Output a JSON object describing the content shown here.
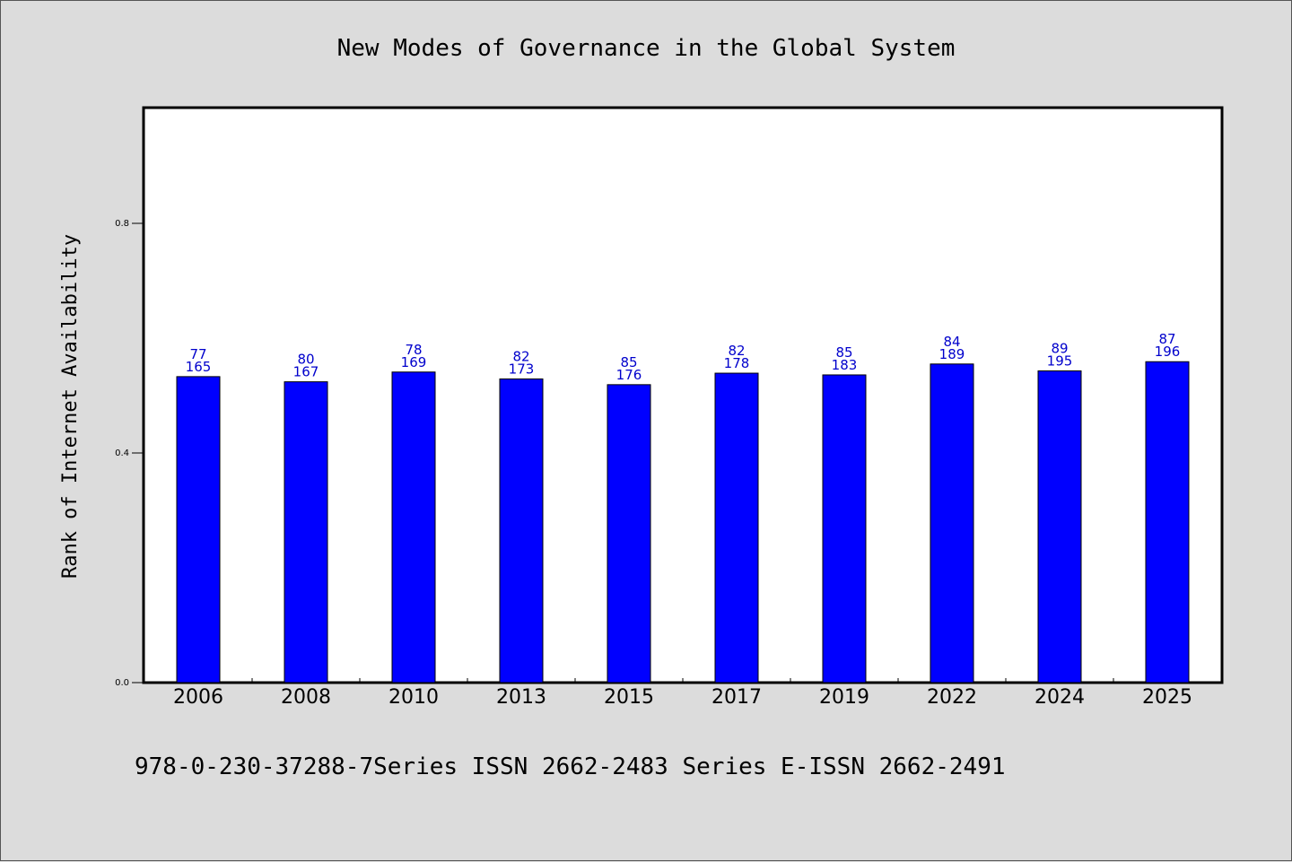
{
  "chart_data": {
    "type": "bar",
    "title": "New Modes of Governance in the Global System",
    "ylabel": "Rank of Internet Availability",
    "xlabel": "",
    "categories": [
      "2006",
      "2008",
      "2010",
      "2013",
      "2015",
      "2017",
      "2019",
      "2022",
      "2024",
      "2025"
    ],
    "values": [
      0.533,
      0.524,
      0.541,
      0.529,
      0.519,
      0.539,
      0.536,
      0.555,
      0.543,
      0.559
    ],
    "labels_top": [
      "77",
      "80",
      "78",
      "82",
      "85",
      "82",
      "85",
      "84",
      "89",
      "87"
    ],
    "labels_bottom": [
      "165",
      "167",
      "169",
      "173",
      "176",
      "178",
      "183",
      "189",
      "195",
      "196"
    ],
    "ylim": [
      0,
      1.0
    ],
    "yticks": [
      0.0,
      0.4,
      0.8
    ],
    "ytick_labels": [
      "0.0",
      "0.4",
      "0.8"
    ],
    "grid": false,
    "bar_color": "#0000ff",
    "label_color": "#0000cc"
  },
  "footer": "978-0-230-37288-7Series ISSN 2662-2483 Series E-ISSN 2662-2491",
  "colors": {
    "background": "#dcdcdc",
    "plot_background": "#ffffff",
    "axis": "#000000"
  }
}
